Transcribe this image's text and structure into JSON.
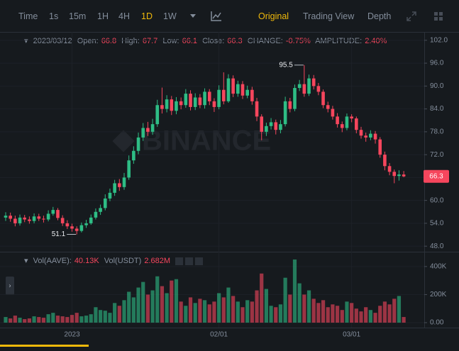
{
  "toolbar": {
    "intervals": [
      "Time",
      "1s",
      "15m",
      "1H",
      "4H",
      "1D",
      "1W"
    ],
    "active_interval": "1D",
    "views": [
      "Original",
      "Trading View",
      "Depth"
    ],
    "active_view": "Original"
  },
  "chart_data": {
    "type": "candlestick",
    "watermark": "BINANCE",
    "header": {
      "date": "2023/03/12",
      "open_label": "Open:",
      "high_label": "High:",
      "low_label": "Low:",
      "close_label": "Close:",
      "change_label": "CHANGE:",
      "change": "-0.75%",
      "amplitude_label": "AMPLITUDE:",
      "amplitude": "2.40%"
    },
    "volume_header": {
      "base_label": "Vol(AAVE):",
      "base_value": "40.13K",
      "quote_label": "Vol(USDT)",
      "quote_value": "2.682M"
    },
    "categories": [
      null,
      null,
      null,
      null,
      null,
      null,
      null,
      null,
      null,
      null,
      null,
      null,
      null,
      null,
      "2023",
      null,
      null,
      null,
      null,
      null,
      null,
      null,
      null,
      null,
      null,
      null,
      null,
      null,
      null,
      null,
      null,
      null,
      null,
      null,
      null,
      null,
      null,
      null,
      null,
      null,
      null,
      null,
      null,
      null,
      null,
      "02/01",
      null,
      null,
      null,
      null,
      null,
      null,
      null,
      null,
      null,
      null,
      null,
      null,
      null,
      null,
      null,
      null,
      null,
      null,
      null,
      null,
      null,
      null,
      null,
      null,
      null,
      null,
      null,
      "03/01",
      null,
      null,
      null,
      null,
      null,
      null,
      null,
      null,
      null,
      null,
      null
    ],
    "open": [
      55.5,
      56.0,
      55.2,
      54.0,
      55.5,
      55.0,
      54.6,
      55.8,
      55.2,
      55.0,
      56.5,
      57.5,
      55.4,
      54.0,
      53.2,
      52.6,
      52.0,
      53.5,
      54.0,
      55.5,
      57.0,
      58.0,
      60.5,
      62.0,
      64.5,
      63.5,
      66.0,
      70.5,
      73.0,
      76.5,
      79.0,
      78.0,
      80.0,
      85.0,
      84.0,
      86.5,
      83.5,
      86.0,
      85.0,
      88.0,
      84.5,
      87.0,
      85.0,
      88.5,
      86.0,
      84.5,
      89,
      86,
      92,
      88,
      90.5,
      87.5,
      89,
      86,
      82,
      78,
      79.5,
      80.5,
      78.5,
      80,
      86,
      84,
      89.5,
      90.5,
      88,
      92,
      90,
      88.5,
      85,
      84,
      82,
      80,
      79,
      82,
      81.5,
      78.5,
      77,
      76.5,
      77.5,
      76,
      72,
      69,
      67.5,
      66.4,
      66.8
    ],
    "high": [
      56.9,
      56.8,
      56.0,
      56.3,
      56.2,
      55.8,
      56.6,
      56.5,
      56.0,
      57.4,
      58.3,
      58.0,
      56.1,
      54.8,
      53.9,
      53.2,
      54.2,
      54.9,
      56.3,
      57.9,
      58.9,
      61.6,
      63.1,
      65.4,
      65.6,
      67.2,
      71.8,
      74.2,
      77.8,
      80.3,
      80.6,
      81.4,
      86.4,
      89.6,
      87.6,
      87.4,
      87.1,
      87.0,
      89.2,
      88.9,
      88.1,
      87.9,
      89.4,
      89.2,
      86.8,
      90.2,
      93.6,
      93.1,
      92.8,
      91.4,
      91.3,
      90.1,
      89.8,
      86.9,
      82.6,
      80.4,
      81.6,
      81.2,
      81.1,
      87.2,
      86.9,
      90.4,
      91.6,
      95.5,
      93.0,
      92.9,
      90.8,
      89.1,
      85.9,
      84.8,
      82.9,
      80.7,
      82.8,
      82.6,
      82.0,
      79.3,
      77.8,
      78.4,
      78.2,
      76.6,
      72.8,
      69.8,
      68.1,
      67.9,
      67.7
    ],
    "low": [
      54.6,
      54.4,
      53.2,
      53.4,
      54.3,
      53.9,
      54.0,
      54.6,
      54.2,
      54.5,
      56.0,
      54.8,
      53.3,
      52.5,
      51.8,
      51.1,
      51.6,
      52.8,
      53.6,
      55.0,
      56.2,
      57.4,
      59.8,
      61.2,
      62.5,
      62.8,
      65.4,
      69.6,
      72.1,
      75.6,
      76.9,
      77.2,
      79.3,
      82.8,
      83.1,
      82.4,
      82.6,
      83.9,
      84.3,
      83.6,
      83.7,
      84.2,
      84.1,
      85.0,
      83.2,
      83.9,
      85.2,
      85.6,
      87.1,
      87.2,
      86.6,
      86.8,
      85.1,
      80.8,
      75.8,
      76.9,
      78.6,
      77.3,
      77.6,
      79.4,
      83.1,
      83.4,
      88.7,
      87.2,
      87.4,
      89.1,
      87.6,
      84.2,
      83.1,
      81.2,
      79.1,
      77.9,
      78.4,
      80.5,
      77.6,
      76.2,
      75.4,
      75.8,
      74.9,
      71.2,
      67.9,
      66.6,
      64.5,
      65.2,
      66.1
    ],
    "close": [
      56.0,
      55.2,
      54.0,
      55.5,
      55.0,
      54.6,
      55.8,
      55.2,
      55.0,
      56.5,
      57.5,
      55.4,
      54.0,
      53.2,
      52.6,
      52.0,
      53.5,
      54.0,
      55.5,
      57.0,
      58.0,
      60.5,
      62.0,
      64.5,
      63.5,
      66.0,
      70.5,
      73.0,
      76.5,
      79.0,
      78.0,
      80.0,
      85.0,
      84.0,
      86.5,
      83.5,
      86.0,
      85.0,
      88.0,
      84.5,
      87.0,
      85.0,
      88.5,
      86.0,
      84.5,
      89,
      86,
      92,
      88,
      90.5,
      87.5,
      89,
      86,
      82,
      78,
      79.5,
      80.5,
      78.5,
      80,
      86,
      84,
      89.5,
      90.5,
      88,
      92,
      90,
      88.5,
      85,
      84,
      82,
      80,
      79,
      82,
      81.5,
      78.5,
      77,
      76.5,
      77.5,
      76,
      72,
      69,
      67.5,
      66.4,
      66.8,
      66.3
    ],
    "volume": [
      40000,
      30000,
      50000,
      35000,
      25000,
      30000,
      45000,
      40000,
      35000,
      60000,
      70000,
      50000,
      45000,
      40000,
      55000,
      70000,
      45000,
      50000,
      60000,
      110000,
      90000,
      85000,
      70000,
      140000,
      120000,
      160000,
      220000,
      180000,
      250000,
      290000,
      200000,
      230000,
      330000,
      260000,
      210000,
      300000,
      310000,
      150000,
      120000,
      180000,
      140000,
      170000,
      160000,
      130000,
      150000,
      210000,
      180000,
      250000,
      190000,
      150000,
      110000,
      160000,
      150000,
      230000,
      350000,
      240000,
      120000,
      110000,
      130000,
      320000,
      200000,
      450000,
      280000,
      200000,
      230000,
      170000,
      140000,
      160000,
      110000,
      130000,
      120000,
      90000,
      150000,
      140000,
      100000,
      80000,
      110000,
      90000,
      70000,
      120000,
      150000,
      130000,
      170000,
      190000,
      40130
    ],
    "up_color": "#2ebd85",
    "down_color": "#f6465d",
    "ylim": [
      47.1,
      104.2
    ],
    "yticks": [
      {
        "value": 48,
        "label": "48.0"
      },
      {
        "value": 54,
        "label": "54.0"
      },
      {
        "value": 60,
        "label": "60.0"
      },
      {
        "value": 66,
        "label": "66.0"
      },
      {
        "value": 72,
        "label": "72.0"
      },
      {
        "value": 78,
        "label": "78.0"
      },
      {
        "value": 84,
        "label": "84.0"
      },
      {
        "value": 90,
        "label": "90.0"
      },
      {
        "value": 96,
        "label": "96.0"
      },
      {
        "value": 102,
        "label": "102.0"
      }
    ],
    "vlim": [
      0,
      470000
    ],
    "vticks": [
      {
        "value": 0,
        "label": "0.00"
      },
      {
        "value": 200000,
        "label": "200K"
      },
      {
        "value": 400000,
        "label": "400K"
      }
    ],
    "grid": true
  }
}
